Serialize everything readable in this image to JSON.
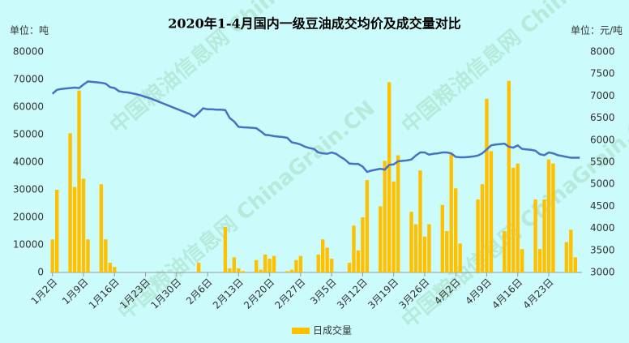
{
  "chart_data": {
    "type": "combo",
    "title": "2020年1-4月国内一级豆油成交均价及成交量对比",
    "y_unit": "单位：吨",
    "y2_unit": "单位：元/吨",
    "watermark": "中国粮油信息网 ChinaGrain.CN",
    "categories": [
      "1月2日",
      null,
      null,
      null,
      null,
      null,
      null,
      "1月9日",
      null,
      null,
      null,
      null,
      null,
      null,
      "1月16日",
      null,
      null,
      null,
      null,
      null,
      null,
      "1月23日",
      null,
      null,
      null,
      null,
      null,
      null,
      "1月30日",
      null,
      null,
      null,
      null,
      null,
      null,
      "2月6日",
      null,
      null,
      null,
      null,
      null,
      null,
      "2月13日",
      null,
      null,
      null,
      null,
      null,
      null,
      "2月20日",
      null,
      null,
      null,
      null,
      null,
      null,
      "2月27日",
      null,
      null,
      null,
      null,
      null,
      null,
      "3月5日",
      null,
      null,
      null,
      null,
      null,
      null,
      "3月12日",
      null,
      null,
      null,
      null,
      null,
      null,
      "3月19日",
      null,
      null,
      null,
      null,
      null,
      null,
      "3月26日",
      null,
      null,
      null,
      null,
      null,
      null,
      "4月2日",
      null,
      null,
      null,
      null,
      null,
      null,
      "4月9日",
      null,
      null,
      null,
      null,
      null,
      null,
      "4月16日",
      null,
      null,
      null,
      null,
      null,
      null,
      "4月23日",
      null,
      null,
      null,
      null,
      null,
      null,
      null
    ],
    "series": [
      {
        "name": "日成交量",
        "type": "bar",
        "color": "#ffc000",
        "axis": "y",
        "values": [
          12000,
          30000,
          null,
          null,
          50500,
          31000,
          66000,
          34000,
          12000,
          null,
          null,
          32000,
          12000,
          3500,
          2000,
          null,
          null,
          null,
          null,
          null,
          null,
          null,
          null,
          null,
          null,
          null,
          null,
          null,
          null,
          null,
          null,
          null,
          null,
          3500,
          null,
          null,
          null,
          null,
          null,
          16500,
          1500,
          5500,
          1500,
          500,
          null,
          null,
          4500,
          1000,
          6500,
          5000,
          6000,
          null,
          null,
          500,
          1000,
          4500,
          6000,
          null,
          null,
          null,
          6500,
          12000,
          9000,
          5000,
          null,
          null,
          null,
          3500,
          17000,
          8000,
          20000,
          33500,
          null,
          null,
          24000,
          40500,
          69000,
          33000,
          42500,
          null,
          null,
          22000,
          17500,
          37000,
          13000,
          17500,
          null,
          null,
          24500,
          15000,
          43000,
          30500,
          10500,
          null,
          null,
          null,
          26500,
          32000,
          63000,
          44000,
          null,
          null,
          15000,
          69500,
          38000,
          39500,
          8500,
          null,
          null,
          26500,
          8500,
          26500,
          41000,
          39500,
          null,
          null,
          11000,
          15500,
          5500,
          null
        ]
      },
      {
        "type": "line",
        "color": "#4472c4",
        "axis": "y2",
        "values": [
          7050,
          7140,
          7160,
          7170,
          7180,
          7190,
          7180,
          7260,
          7330,
          7320,
          7310,
          7300,
          7280,
          7200,
          7180,
          7110,
          7090,
          7080,
          7060,
          7040,
          7010,
          6980,
          6950,
          6910,
          6870,
          6830,
          6790,
          6750,
          6710,
          6670,
          6630,
          6590,
          6530,
          6620,
          6720,
          6700,
          6700,
          6690,
          6690,
          6680,
          6500,
          6420,
          6300,
          6290,
          6285,
          6280,
          6270,
          6200,
          6120,
          6110,
          6090,
          6080,
          6070,
          6050,
          5950,
          5930,
          5900,
          5850,
          5820,
          5800,
          5720,
          5700,
          5690,
          5720,
          5690,
          5620,
          5560,
          5470,
          5460,
          5460,
          5400,
          5280,
          5310,
          5330,
          5350,
          5330,
          5440,
          5450,
          5520,
          5530,
          5540,
          5560,
          5650,
          5720,
          5720,
          5670,
          5690,
          5700,
          5720,
          5720,
          5700,
          5620,
          5610,
          5610,
          5620,
          5630,
          5650,
          5700,
          5790,
          5880,
          5900,
          5910,
          5920,
          5850,
          5830,
          5880,
          5800,
          5790,
          5780,
          5760,
          5680,
          5660,
          5720,
          5700,
          5660,
          5640,
          5620,
          5600,
          5600,
          5600
        ]
      }
    ],
    "ylim": [
      0,
      80000
    ],
    "yticks": [
      0,
      10000,
      20000,
      30000,
      40000,
      50000,
      60000,
      70000,
      80000
    ],
    "y2lim": [
      3000,
      8000
    ],
    "y2ticks": [
      3000,
      3500,
      4000,
      4500,
      5000,
      5500,
      6000,
      6500,
      7000,
      7500,
      8000
    ],
    "legend": "bottom"
  }
}
